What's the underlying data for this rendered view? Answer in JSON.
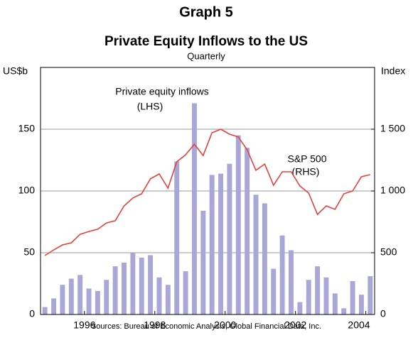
{
  "chart_data": {
    "type": "bar-line",
    "title": "Graph 5",
    "subtitle": "Private Equity Inflows to the US",
    "frequency": "Quarterly",
    "ylabel": "US$b",
    "y2label": "Index",
    "source": "Sources: Bureau of Economic Analysis; Global Financial Data, Inc.",
    "annotations": [
      "Private equity inflows",
      "(LHS)",
      "S&P 500",
      "(RHS)"
    ],
    "x": [
      1994.75,
      1995,
      1995.25,
      1995.5,
      1995.75,
      1996,
      1996.25,
      1996.5,
      1996.75,
      1997,
      1997.25,
      1997.5,
      1997.75,
      1998,
      1998.25,
      1998.5,
      1998.75,
      1999,
      1999.25,
      1999.5,
      1999.75,
      2000,
      2000.25,
      2000.5,
      2000.75,
      2001,
      2001.25,
      2001.5,
      2001.75,
      2002,
      2002.25,
      2002.5,
      2002.75,
      2003,
      2003.25,
      2003.5,
      2003.75,
      2004
    ],
    "xlim": [
      1994.75,
      2004.25
    ],
    "xticks": [
      1996,
      1998,
      2000,
      2002,
      2004
    ],
    "series": [
      {
        "name": "Private equity inflows",
        "color": "#a9a6d8",
        "values": [
          6,
          13,
          24,
          29,
          32,
          21,
          19,
          28,
          39,
          42,
          50,
          46,
          48,
          30,
          24,
          124,
          35,
          171,
          84,
          113,
          114,
          122,
          145,
          135,
          97,
          90,
          37,
          64,
          52,
          10,
          28,
          39,
          30,
          17,
          5,
          27,
          16,
          31
        ]
      },
      {
        "name": "S&P 500",
        "color": "#e8403a",
        "axis": "y2",
        "values": [
          477,
          523,
          563,
          580,
          649,
          672,
          690,
          741,
          759,
          879,
          943,
          977,
          1098,
          1138,
          1023,
          1236,
          1293,
          1379,
          1287,
          1471,
          1500,
          1460,
          1437,
          1333,
          1167,
          1218,
          1046,
          1155,
          1155,
          1040,
          983,
          810,
          879,
          851,
          977,
          1000,
          1115,
          1132
        ]
      }
    ],
    "ylim": [
      0,
      200
    ],
    "yticks": [
      0,
      50,
      100,
      150
    ],
    "y2lim": [
      0,
      2000
    ],
    "y2ticks": [
      0,
      500,
      {
        "value": 1000,
        "label": "1 000"
      },
      {
        "value": 1500,
        "label": "1 500"
      }
    ],
    "grid": true
  }
}
